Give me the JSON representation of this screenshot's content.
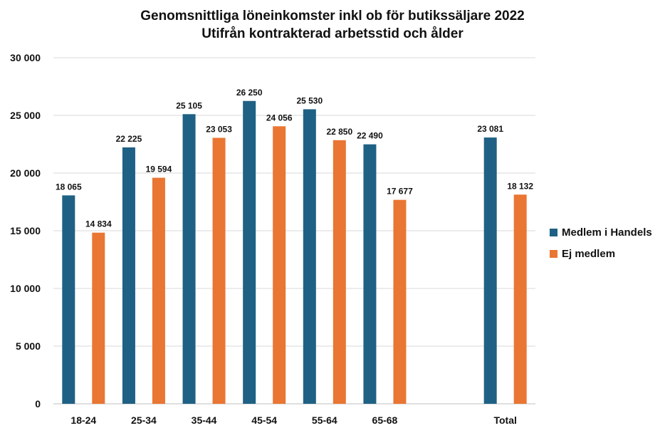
{
  "chart_data": {
    "type": "bar",
    "title": "Genomsnittliga löneinkomster inkl ob för butikssäljare 2022",
    "subtitle": "Utifrån kontrakterad arbetsstid och ålder",
    "categories": [
      "18-24",
      "25-34",
      "35-44",
      "45-54",
      "55-64",
      "65-68",
      "",
      "Total"
    ],
    "series": [
      {
        "name": "Medlem i Handels",
        "color": "#1f6184",
        "values": [
          18065,
          22225,
          25105,
          26250,
          25530,
          22490,
          null,
          23081
        ]
      },
      {
        "name": "Ej medlem",
        "color": "#e97633",
        "values": [
          14834,
          19594,
          23053,
          24056,
          22850,
          17677,
          null,
          18132
        ]
      }
    ],
    "ylim": [
      0,
      30000
    ],
    "yticks": [
      0,
      5000,
      10000,
      15000,
      20000,
      25000,
      30000
    ],
    "grid": true,
    "legend_position": "right"
  }
}
